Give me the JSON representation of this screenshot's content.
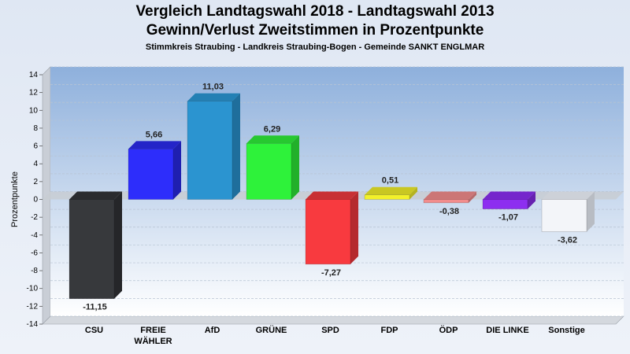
{
  "chart_data": {
    "type": "bar",
    "title": "Vergleich Landtagswahl 2018 - Landtagswahl 2013",
    "subtitle": "Gewinn/Verlust Zweitstimmen in Prozentpunkte",
    "caption": "Stimmkreis Straubing - Landkreis Straubing-Bogen - Gemeinde SANKT ENGLMAR",
    "ylabel": "Prozentpunkte",
    "xlabel": "",
    "ylim": [
      -14,
      14
    ],
    "yticks": [
      14,
      12,
      10,
      8,
      6,
      4,
      2,
      0,
      -2,
      -4,
      -6,
      -8,
      -10,
      -12,
      -14
    ],
    "grid": true,
    "categories": [
      "CSU",
      "FREIE WÄHLER",
      "AfD",
      "GRÜNE",
      "SPD",
      "FDP",
      "ÖDP",
      "DIE LINKE",
      "Sonstige"
    ],
    "category_lines": [
      [
        "CSU"
      ],
      [
        "FREIE",
        "WÄHLER"
      ],
      [
        "AfD"
      ],
      [
        "GRÜNE"
      ],
      [
        "SPD"
      ],
      [
        "FDP"
      ],
      [
        "ÖDP"
      ],
      [
        "DIE LINKE"
      ],
      [
        "Sonstige"
      ]
    ],
    "values": [
      -11.15,
      5.66,
      11.03,
      6.29,
      -7.27,
      0.51,
      -0.38,
      -1.07,
      -3.62
    ],
    "value_labels": [
      "-11,15",
      "5,66",
      "11,03",
      "6,29",
      "-7,27",
      "0,51",
      "-0,38",
      "-1,07",
      "-3,62"
    ],
    "colors": [
      "#37393c",
      "#2d2dfb",
      "#2b94d0",
      "#2ef23a",
      "#f83a3f",
      "#f3f12a",
      "#f28c8c",
      "#8d2ef0",
      "#f3f5f9"
    ],
    "side_colors": [
      "#252629",
      "#1f1fb0",
      "#1f6e9c",
      "#22b02a",
      "#b52a2e",
      "#b5b31e",
      "#b86a6a",
      "#6721b0",
      "#b8bcc3"
    ],
    "top_colors": [
      "#2a2b2e",
      "#2424c8",
      "#2380b4",
      "#27c830",
      "#c83034",
      "#c9c722",
      "#cc7676",
      "#7526cc",
      "#cdd1d8"
    ]
  }
}
